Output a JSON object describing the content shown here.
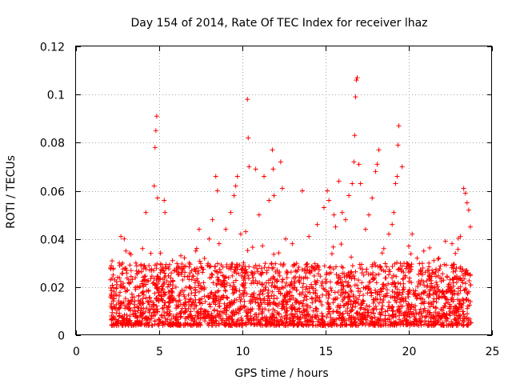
{
  "chart_data": {
    "type": "scatter",
    "title": "Day 154 of 2014, Rate Of TEC Index for receiver lhaz",
    "xlabel": "GPS time / hours",
    "ylabel": "ROTI / TECUs",
    "xlim": [
      0,
      25
    ],
    "ylim": [
      0,
      0.12
    ],
    "xticks": [
      0,
      5,
      10,
      15,
      20,
      25
    ],
    "yticks": [
      0,
      0.02,
      0.04,
      0.06,
      0.08,
      0.1,
      0.12
    ],
    "xtick_labels": [
      "0",
      "5",
      "10",
      "15",
      "20",
      "25"
    ],
    "ytick_labels": [
      "0",
      "0.02",
      "0.04",
      "0.06",
      "0.08",
      "0.1",
      "0.12"
    ],
    "grid": true,
    "marker": "+",
    "color": "#ff0000",
    "x_data_range": [
      2.05,
      23.75
    ],
    "typical_range": [
      0.004,
      0.03
    ],
    "series": [
      {
        "name": "ROTI",
        "points": [
          [
            2.1,
            0.012
          ],
          [
            2.3,
            0.018
          ],
          [
            2.5,
            0.024
          ],
          [
            2.6,
            0.03
          ],
          [
            2.7,
            0.041
          ],
          [
            2.9,
            0.04
          ],
          [
            3.0,
            0.035
          ],
          [
            3.3,
            0.022
          ],
          [
            3.6,
            0.03
          ],
          [
            4.0,
            0.036
          ],
          [
            4.2,
            0.051
          ],
          [
            4.5,
            0.034
          ],
          [
            4.7,
            0.062
          ],
          [
            4.75,
            0.078
          ],
          [
            4.8,
            0.085
          ],
          [
            4.85,
            0.091
          ],
          [
            4.9,
            0.057
          ],
          [
            5.3,
            0.056
          ],
          [
            5.35,
            0.051
          ],
          [
            5.8,
            0.031
          ],
          [
            6.3,
            0.033
          ],
          [
            6.8,
            0.03
          ],
          [
            7.2,
            0.035
          ],
          [
            7.4,
            0.044
          ],
          [
            8.0,
            0.04
          ],
          [
            8.2,
            0.048
          ],
          [
            8.4,
            0.066
          ],
          [
            8.5,
            0.06
          ],
          [
            8.6,
            0.038
          ],
          [
            9.0,
            0.044
          ],
          [
            9.3,
            0.051
          ],
          [
            9.5,
            0.058
          ],
          [
            9.6,
            0.062
          ],
          [
            9.7,
            0.066
          ],
          [
            9.9,
            0.042
          ],
          [
            10.2,
            0.043
          ],
          [
            10.3,
            0.098
          ],
          [
            10.35,
            0.082
          ],
          [
            10.4,
            0.07
          ],
          [
            10.8,
            0.069
          ],
          [
            11.0,
            0.05
          ],
          [
            11.3,
            0.066
          ],
          [
            11.6,
            0.056
          ],
          [
            11.8,
            0.077
          ],
          [
            11.85,
            0.069
          ],
          [
            11.9,
            0.058
          ],
          [
            12.3,
            0.072
          ],
          [
            12.4,
            0.061
          ],
          [
            12.6,
            0.04
          ],
          [
            13.0,
            0.038
          ],
          [
            13.6,
            0.06
          ],
          [
            14.0,
            0.041
          ],
          [
            14.5,
            0.046
          ],
          [
            14.9,
            0.053
          ],
          [
            15.1,
            0.06
          ],
          [
            15.2,
            0.056
          ],
          [
            15.5,
            0.05
          ],
          [
            15.6,
            0.045
          ],
          [
            15.8,
            0.064
          ],
          [
            16.0,
            0.051
          ],
          [
            16.2,
            0.048
          ],
          [
            16.4,
            0.058
          ],
          [
            16.6,
            0.063
          ],
          [
            16.7,
            0.072
          ],
          [
            16.75,
            0.083
          ],
          [
            16.8,
            0.099
          ],
          [
            16.85,
            0.106
          ],
          [
            16.9,
            0.107
          ],
          [
            17.0,
            0.071
          ],
          [
            17.1,
            0.063
          ],
          [
            17.4,
            0.044
          ],
          [
            17.6,
            0.05
          ],
          [
            17.8,
            0.057
          ],
          [
            18.0,
            0.068
          ],
          [
            18.1,
            0.071
          ],
          [
            18.2,
            0.077
          ],
          [
            18.5,
            0.036
          ],
          [
            18.8,
            0.042
          ],
          [
            19.0,
            0.046
          ],
          [
            19.1,
            0.051
          ],
          [
            19.2,
            0.063
          ],
          [
            19.3,
            0.066
          ],
          [
            19.35,
            0.079
          ],
          [
            19.4,
            0.087
          ],
          [
            19.6,
            0.07
          ],
          [
            20.0,
            0.037
          ],
          [
            20.2,
            0.042
          ],
          [
            20.5,
            0.032
          ],
          [
            20.9,
            0.035
          ],
          [
            21.4,
            0.027
          ],
          [
            21.8,
            0.032
          ],
          [
            22.2,
            0.039
          ],
          [
            22.6,
            0.038
          ],
          [
            22.8,
            0.034
          ],
          [
            23.1,
            0.041
          ],
          [
            23.3,
            0.061
          ],
          [
            23.4,
            0.059
          ],
          [
            23.5,
            0.055
          ],
          [
            23.6,
            0.052
          ],
          [
            23.7,
            0.045
          ]
        ]
      }
    ]
  }
}
